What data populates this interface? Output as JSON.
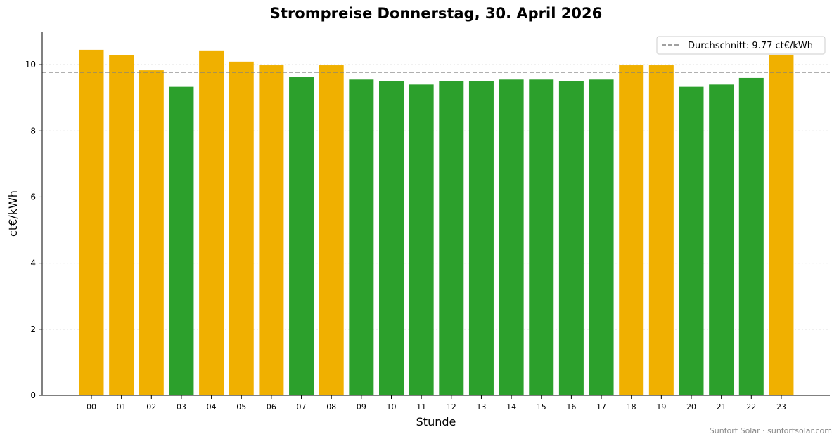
{
  "chart_data": {
    "type": "bar",
    "title": "Strompreise Donnerstag, 30. April 2026",
    "xlabel": "Stunde",
    "ylabel": "ct€/kWh",
    "categories": [
      "00",
      "01",
      "02",
      "03",
      "04",
      "05",
      "06",
      "07",
      "08",
      "09",
      "10",
      "11",
      "12",
      "13",
      "14",
      "15",
      "16",
      "17",
      "18",
      "19",
      "20",
      "21",
      "22",
      "23"
    ],
    "values": [
      10.45,
      10.28,
      9.83,
      9.33,
      10.43,
      10.09,
      9.98,
      9.64,
      9.98,
      9.55,
      9.5,
      9.4,
      9.5,
      9.5,
      9.55,
      9.55,
      9.5,
      9.55,
      9.98,
      9.98,
      9.33,
      9.4,
      9.6,
      10.3
    ],
    "ylim": [
      0,
      11
    ],
    "yticks": [
      0,
      2,
      4,
      6,
      8,
      10
    ],
    "grid": "horizontal dotted",
    "average": {
      "value": 9.77,
      "label": "Durchschnitt: 9.77 ct€/kWh"
    },
    "legend_position": "top-right",
    "colors": {
      "above_average": "#f0b000",
      "below_average": "#2ca02c",
      "average_line": "#808080"
    }
  },
  "footer": {
    "credit": "Sunfort Solar · sunfortsolar.com"
  }
}
